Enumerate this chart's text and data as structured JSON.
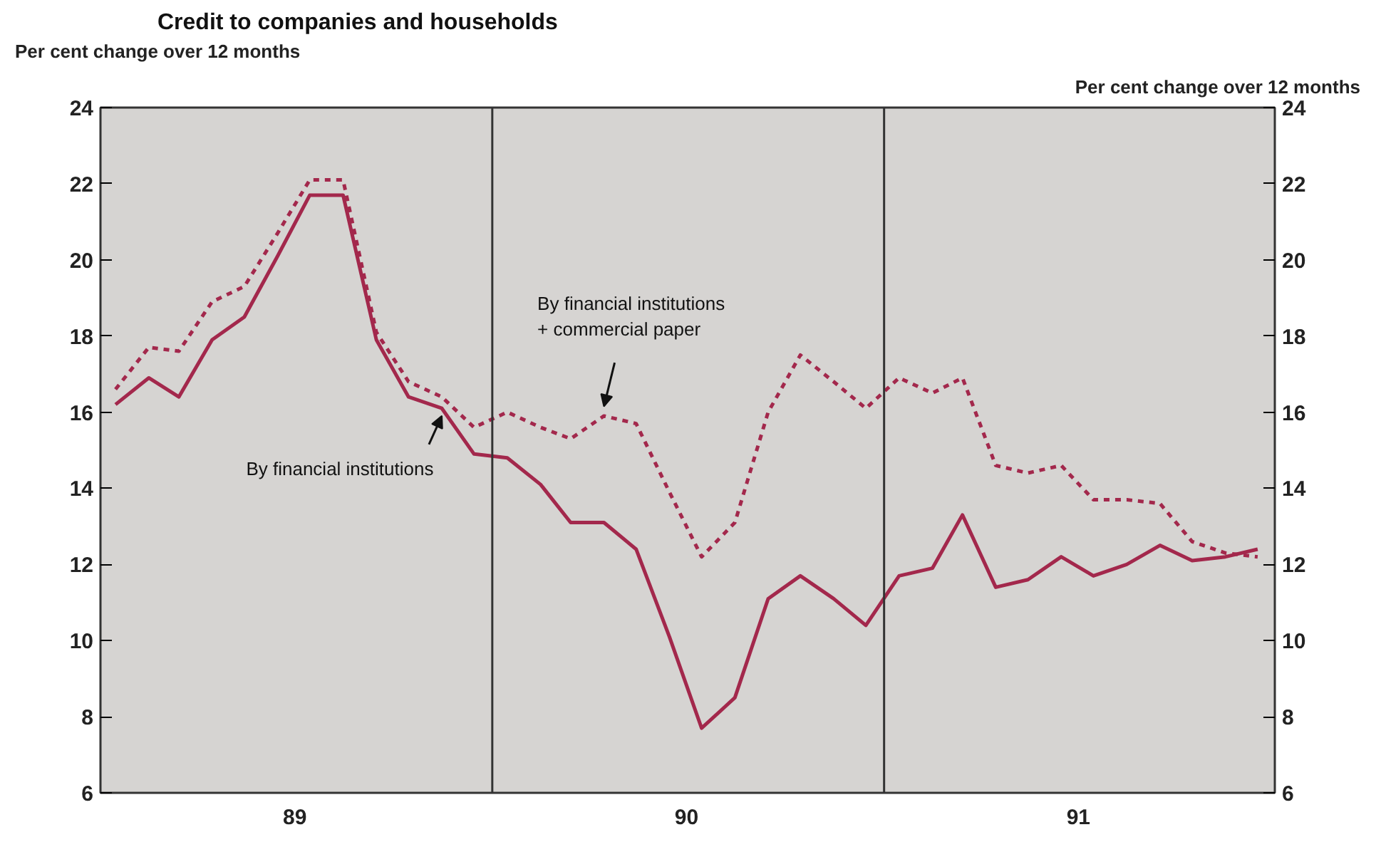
{
  "chart_data": {
    "type": "line",
    "title": "Credit to companies and households",
    "ylabel": "Per cent change over 12 months",
    "y2label": "Per cent change over 12 months",
    "x": [
      "1989-01-15",
      "1989-02-15",
      "1989-03-15",
      "1989-04-15",
      "1989-05-15",
      "1989-06-15",
      "1989-07-15",
      "1989-08-15",
      "1989-09-15",
      "1989-10-15",
      "1989-11-15",
      "1989-12-15",
      "1990-01-15",
      "1990-02-15",
      "1990-03-15",
      "1990-04-15",
      "1990-05-15",
      "1990-06-15",
      "1990-07-15",
      "1990-08-15",
      "1990-09-15",
      "1990-10-15",
      "1990-11-15",
      "1990-12-15",
      "1991-01-15",
      "1991-02-15",
      "1991-03-15",
      "1991-04-15",
      "1991-05-15",
      "1991-06-15",
      "1991-07-15",
      "1991-08-15",
      "1991-09-15",
      "1991-10-15",
      "1991-11-15",
      "1991-12-15"
    ],
    "series": [
      {
        "color": "#a3284c",
        "line_style": "solid",
        "values": [
          16.2,
          16.9,
          16.4,
          17.9,
          18.5,
          20.1,
          21.7,
          21.7,
          17.9,
          16.4,
          16.1,
          14.9,
          14.8,
          14.1,
          13.1,
          13.1,
          12.4,
          10.1,
          7.7,
          8.5,
          11.1,
          11.7,
          11.1,
          10.4,
          11.7,
          11.9,
          13.3,
          11.4,
          11.6,
          12.2,
          11.7,
          12.0,
          12.5,
          12.1,
          12.2,
          12.4
        ]
      },
      {
        "color": "#a3284c",
        "line_style": "dashed",
        "values": [
          16.6,
          17.7,
          17.6,
          18.9,
          19.3,
          20.7,
          22.1,
          22.1,
          18.1,
          16.8,
          16.4,
          15.6,
          16.0,
          15.6,
          15.3,
          15.9,
          15.7,
          13.9,
          12.2,
          13.1,
          16.0,
          17.5,
          16.8,
          16.1,
          16.9,
          16.5,
          16.9,
          14.6,
          14.4,
          14.6,
          13.7,
          13.7,
          13.6,
          12.6,
          12.3,
          12.2
        ]
      }
    ],
    "xlim": [
      "1989-01-01",
      "1991-12-31"
    ],
    "xticks": [
      {
        "value": "1989-07-01",
        "label": "89"
      },
      {
        "value": "1990-07-01",
        "label": "90"
      },
      {
        "value": "1991-07-01",
        "label": "91"
      }
    ],
    "ylim": [
      6,
      24
    ],
    "yticks": [
      6,
      8,
      10,
      12,
      14,
      16,
      18,
      20,
      22,
      24
    ],
    "y2lim": [
      6,
      24
    ],
    "y2ticks": [
      6,
      8,
      10,
      12,
      14,
      16,
      18,
      20,
      22,
      24
    ],
    "ref_lines": [
      {
        "axis": "x",
        "value": "1990-01-01",
        "color": "#333333"
      },
      {
        "axis": "x",
        "value": "1991-01-01",
        "color": "#333333"
      }
    ],
    "annotations": [
      {
        "text": "By financial institutions",
        "x": "1989-11-15",
        "y": 16.1
      },
      {
        "text": "By financial institutions\n+ commercial paper",
        "x": "1990-04-15",
        "y": 15.9
      }
    ],
    "grid": false
  }
}
